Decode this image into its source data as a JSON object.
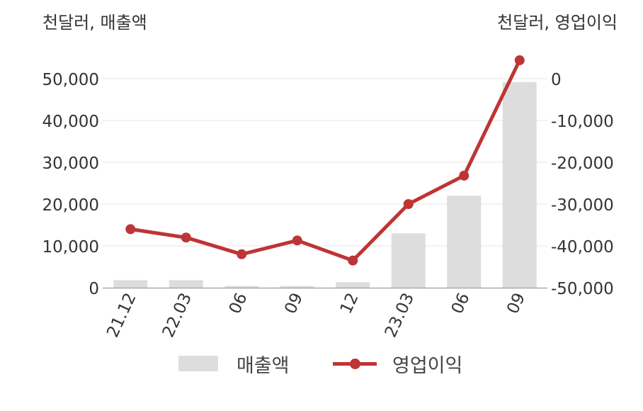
{
  "units": {
    "left": "천달러, 매출액",
    "right": "천달러, 영업이익"
  },
  "legend": {
    "bar": "매출액",
    "line": "영업이익"
  },
  "colors": {
    "bar": "#dddddd",
    "line": "#bf3434",
    "grid": "#e6e6e6",
    "axis": "#aaaaaa",
    "text": "#333333"
  },
  "chart_data": {
    "type": "bar+line",
    "categories": [
      "21.12",
      "22.03",
      "06",
      "09",
      "12",
      "23.03",
      "06",
      "09"
    ],
    "series": [
      {
        "name": "매출액",
        "type": "bar",
        "axis": "left",
        "values": [
          1800,
          1800,
          400,
          400,
          1300,
          13000,
          22000,
          49200
        ]
      },
      {
        "name": "영업이익",
        "type": "line",
        "axis": "right",
        "values": [
          -36000,
          -38000,
          -42000,
          -38700,
          -43500,
          -30000,
          -23200,
          4400
        ]
      }
    ],
    "y_left": {
      "min": 0,
      "max": 50000,
      "ticks": [
        "0",
        "10,000",
        "20,000",
        "30,000",
        "40,000",
        "50,000"
      ]
    },
    "y_right": {
      "min": -50000,
      "max": 0,
      "ticks": [
        "-50,000",
        "-40,000",
        "-30,000",
        "-20,000",
        "-10,000",
        "0"
      ]
    },
    "grid": true,
    "legend_position": "bottom"
  }
}
